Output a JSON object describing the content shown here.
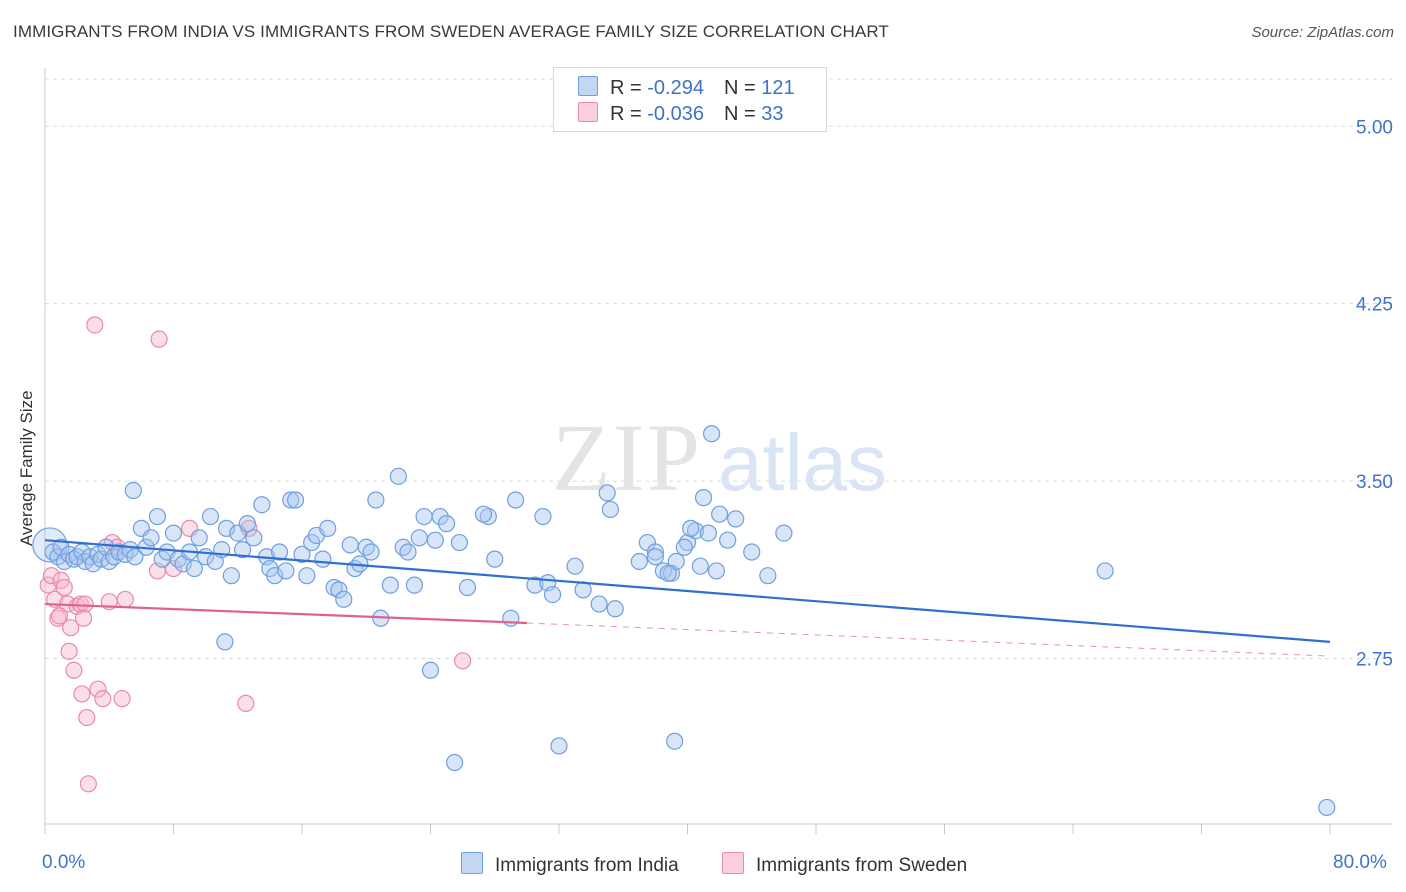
{
  "title": "IMMIGRANTS FROM INDIA VS IMMIGRANTS FROM SWEDEN AVERAGE FAMILY SIZE CORRELATION CHART",
  "source": "Source: ZipAtlas.com",
  "watermark": {
    "zip": "ZIP",
    "atlas": "atlas"
  },
  "legend": {
    "india": {
      "r_label": "R = ",
      "r_value": "-0.294",
      "n_label": "N = ",
      "n_value": "121"
    },
    "sweden": {
      "r_label": "R = ",
      "r_value": "-0.036",
      "n_label": "N = ",
      "n_value": "33"
    }
  },
  "colors": {
    "india_fill": "#a9c6ee",
    "india_stroke": "#6f9fe0",
    "india_line": "#2f6fd0",
    "sweden_fill": "#f6b9cd",
    "sweden_stroke": "#e98aaa",
    "sweden_line": "#e0628c",
    "grid": "#dcdcdc",
    "axis_text": "#3f73c9"
  },
  "chart_data": {
    "type": "scatter",
    "title": "IMMIGRANTS FROM INDIA VS IMMIGRANTS FROM SWEDEN AVERAGE FAMILY SIZE CORRELATION CHART",
    "xlabel": "",
    "ylabel": "Average Family Size",
    "xlim": [
      0,
      80
    ],
    "ylim": [
      2.05,
      5.2
    ],
    "x_tick_labels": [
      "0.0%",
      "80.0%"
    ],
    "y_ticks": [
      2.75,
      3.5,
      4.25,
      5.0
    ],
    "y_tick_labels": [
      "2.75",
      "3.50",
      "4.25",
      "5.00"
    ],
    "series": [
      {
        "name": "Immigrants from India",
        "trend": {
          "x": [
            0,
            80
          ],
          "y": [
            3.25,
            2.82
          ]
        },
        "points": [
          [
            0.3,
            3.23
          ],
          [
            0.5,
            3.2
          ],
          [
            0.8,
            3.18
          ],
          [
            1,
            3.22
          ],
          [
            1.2,
            3.16
          ],
          [
            1.5,
            3.19
          ],
          [
            1.8,
            3.17
          ],
          [
            2,
            3.18
          ],
          [
            2.3,
            3.2
          ],
          [
            2.5,
            3.16
          ],
          [
            2.8,
            3.18
          ],
          [
            3,
            3.15
          ],
          [
            3.3,
            3.19
          ],
          [
            3.5,
            3.17
          ],
          [
            3.8,
            3.22
          ],
          [
            4,
            3.16
          ],
          [
            4.3,
            3.18
          ],
          [
            4.6,
            3.2
          ],
          [
            5,
            3.19
          ],
          [
            5.3,
            3.21
          ],
          [
            5.6,
            3.18
          ],
          [
            5.5,
            3.46
          ],
          [
            6,
            3.3
          ],
          [
            6.3,
            3.22
          ],
          [
            6.6,
            3.26
          ],
          [
            7,
            3.35
          ],
          [
            7.3,
            3.17
          ],
          [
            7.6,
            3.2
          ],
          [
            8,
            3.28
          ],
          [
            8.3,
            3.17
          ],
          [
            8.6,
            3.15
          ],
          [
            9,
            3.2
          ],
          [
            9.3,
            3.13
          ],
          [
            9.6,
            3.26
          ],
          [
            10,
            3.18
          ],
          [
            10.3,
            3.35
          ],
          [
            10.6,
            3.16
          ],
          [
            11,
            3.21
          ],
          [
            11.3,
            3.3
          ],
          [
            11.6,
            3.1
          ],
          [
            12,
            3.28
          ],
          [
            12.3,
            3.21
          ],
          [
            12.6,
            3.32
          ],
          [
            13,
            3.26
          ],
          [
            11.2,
            2.82
          ],
          [
            13.5,
            3.4
          ],
          [
            13.8,
            3.18
          ],
          [
            14,
            3.13
          ],
          [
            14.3,
            3.1
          ],
          [
            14.6,
            3.2
          ],
          [
            15,
            3.12
          ],
          [
            15.3,
            3.42
          ],
          [
            15.6,
            3.42
          ],
          [
            16,
            3.19
          ],
          [
            16.3,
            3.1
          ],
          [
            16.6,
            3.24
          ],
          [
            16.9,
            3.27
          ],
          [
            17.3,
            3.17
          ],
          [
            17.6,
            3.3
          ],
          [
            18,
            3.05
          ],
          [
            18.3,
            3.04
          ],
          [
            18.6,
            3.0
          ],
          [
            19,
            3.23
          ],
          [
            19.3,
            3.13
          ],
          [
            19.6,
            3.15
          ],
          [
            20,
            3.22
          ],
          [
            20.3,
            3.2
          ],
          [
            20.6,
            3.42
          ],
          [
            20.9,
            2.92
          ],
          [
            21.5,
            3.06
          ],
          [
            22,
            3.52
          ],
          [
            22.3,
            3.22
          ],
          [
            22.6,
            3.2
          ],
          [
            23,
            3.06
          ],
          [
            23.3,
            3.26
          ],
          [
            23.6,
            3.35
          ],
          [
            24,
            2.7
          ],
          [
            24.3,
            3.25
          ],
          [
            24.6,
            3.35
          ],
          [
            25,
            3.32
          ],
          [
            25.5,
            2.31
          ],
          [
            25.8,
            3.24
          ],
          [
            26.3,
            3.05
          ],
          [
            27.6,
            3.35
          ],
          [
            27.3,
            3.36
          ],
          [
            28,
            3.17
          ],
          [
            29,
            2.92
          ],
          [
            29.3,
            3.42
          ],
          [
            30.5,
            3.06
          ],
          [
            31,
            3.35
          ],
          [
            31.3,
            3.07
          ],
          [
            31.6,
            3.02
          ],
          [
            32,
            2.38
          ],
          [
            33,
            3.14
          ],
          [
            33.5,
            3.04
          ],
          [
            34.5,
            2.98
          ],
          [
            35,
            3.45
          ],
          [
            35.2,
            3.38
          ],
          [
            35.5,
            2.96
          ],
          [
            37,
            3.16
          ],
          [
            37.5,
            3.24
          ],
          [
            38,
            3.2
          ],
          [
            38.5,
            3.12
          ],
          [
            39,
            3.11
          ],
          [
            39.3,
            3.16
          ],
          [
            40,
            3.24
          ],
          [
            40.5,
            3.29
          ],
          [
            41,
            3.43
          ],
          [
            41.3,
            3.28
          ],
          [
            41.8,
            3.12
          ],
          [
            38,
            3.18
          ],
          [
            38.8,
            3.11
          ],
          [
            39.8,
            3.22
          ],
          [
            40.2,
            3.3
          ],
          [
            42,
            3.36
          ],
          [
            42.5,
            3.25
          ],
          [
            43,
            3.34
          ],
          [
            44,
            3.2
          ],
          [
            46,
            3.28
          ],
          [
            45,
            3.1
          ],
          [
            40.8,
            3.14
          ],
          [
            66,
            3.12
          ],
          [
            41.5,
            3.7
          ],
          [
            39.2,
            2.4
          ],
          [
            79.8,
            2.12
          ]
        ]
      },
      {
        "name": "Immigrants from Sweden",
        "trend": {
          "x": [
            0,
            30
          ],
          "y": [
            2.98,
            2.9
          ],
          "dashed_to": {
            "x": 80,
            "y": 2.76
          }
        },
        "points": [
          [
            0.2,
            3.06
          ],
          [
            0.4,
            3.1
          ],
          [
            0.6,
            3.0
          ],
          [
            0.8,
            2.92
          ],
          [
            1,
            3.08
          ],
          [
            1.2,
            3.05
          ],
          [
            1.4,
            2.98
          ],
          [
            1.5,
            2.78
          ],
          [
            1.6,
            2.88
          ],
          [
            1.8,
            2.7
          ],
          [
            2,
            2.97
          ],
          [
            2.2,
            2.98
          ],
          [
            2.3,
            2.6
          ],
          [
            2.5,
            2.98
          ],
          [
            2.6,
            2.5
          ],
          [
            2.7,
            2.22
          ],
          [
            3.1,
            4.16
          ],
          [
            3.3,
            2.62
          ],
          [
            3.6,
            2.58
          ],
          [
            4,
            2.99
          ],
          [
            4.2,
            3.24
          ],
          [
            4.5,
            3.22
          ],
          [
            4.8,
            2.58
          ],
          [
            5,
            3.0
          ],
          [
            7,
            3.12
          ],
          [
            7.1,
            4.1
          ],
          [
            8,
            3.13
          ],
          [
            9,
            3.3
          ],
          [
            12.7,
            3.3
          ],
          [
            12.5,
            2.56
          ],
          [
            26,
            2.74
          ],
          [
            0.9,
            2.93
          ],
          [
            2.4,
            2.92
          ]
        ]
      }
    ],
    "legend_position": "top-center"
  }
}
